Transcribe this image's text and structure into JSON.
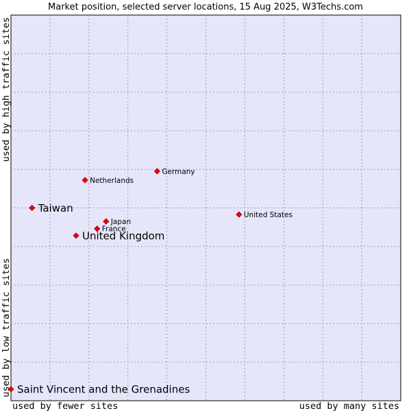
{
  "chart_data": {
    "type": "scatter",
    "title": "Market position, selected server locations, 15 Aug 2025, W3Techs.com",
    "xlabel_left": "used by fewer sites",
    "xlabel_right": "used by many sites",
    "ylabel_bottom": "used by low traffic sites",
    "ylabel_top": "used by high traffic sites",
    "xlim": [
      0,
      100
    ],
    "ylim": [
      0,
      100
    ],
    "grid": true,
    "colors": {
      "plot_bg": "#e6e6fa",
      "grid": "#9999bb",
      "marker": "#ee0000",
      "marker_edge": "#990000"
    },
    "points": [
      {
        "label": "Germany",
        "x": 37.5,
        "y": 59.5,
        "emphasis": "normal"
      },
      {
        "label": "Netherlands",
        "x": 19.0,
        "y": 57.2,
        "emphasis": "normal"
      },
      {
        "label": "Taiwan",
        "x": 5.4,
        "y": 50.0,
        "emphasis": "highlight"
      },
      {
        "label": "United States",
        "x": 58.5,
        "y": 48.3,
        "emphasis": "normal"
      },
      {
        "label": "Japan",
        "x": 24.4,
        "y": 46.5,
        "emphasis": "normal"
      },
      {
        "label": "France",
        "x": 22.1,
        "y": 44.6,
        "emphasis": "normal"
      },
      {
        "label": "United Kingdom",
        "x": 16.7,
        "y": 42.8,
        "emphasis": "highlight"
      },
      {
        "label": "Saint Vincent and the Grenadines",
        "x": 0,
        "y": 3.0,
        "emphasis": "highlight"
      }
    ]
  }
}
